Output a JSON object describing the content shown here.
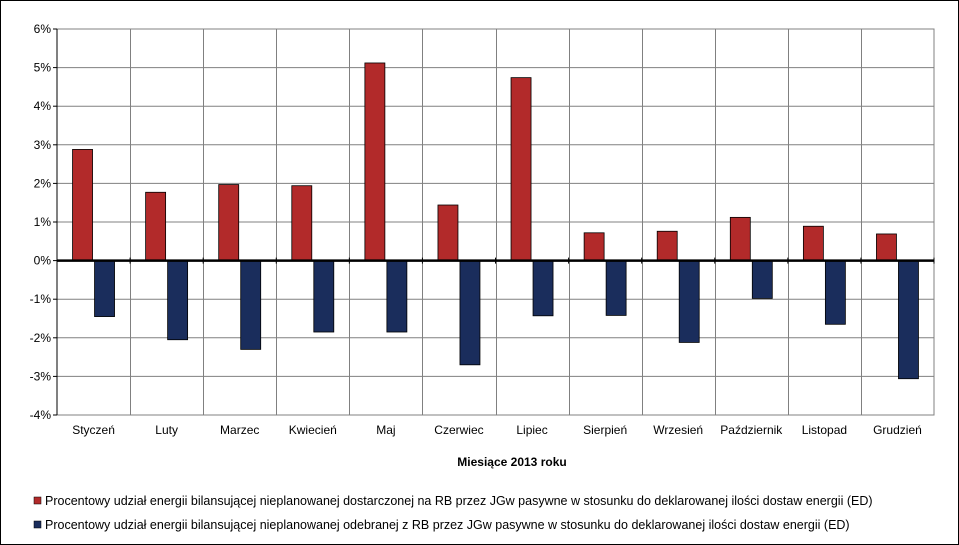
{
  "chart_data": {
    "type": "bar",
    "title": "",
    "xlabel": "Miesiące 2013  roku",
    "ylabel": "",
    "ylim": [
      -4,
      6
    ],
    "yticks": [
      6,
      5,
      4,
      3,
      2,
      1,
      0,
      -1,
      -2,
      -3,
      -4
    ],
    "ytick_labels": [
      "6%",
      "5%",
      "4%",
      "3%",
      "2%",
      "1%",
      "0%",
      "-1%",
      "-2%",
      "-3%",
      "-4%"
    ],
    "unit": "%",
    "grid": true,
    "legend_position": "bottom",
    "categories": [
      "Styczeń",
      "Luty",
      "Marzec",
      "Kwiecień",
      "Maj",
      "Czerwiec",
      "Lipiec",
      "Sierpień",
      "Wrzesień",
      "Październik",
      "Listopad",
      "Grudzień"
    ],
    "series": [
      {
        "name": "Procentowy udział energii bilansującej nieplanowanej dostarczonej na RB przez JGw pasywne w stosunku do deklarowanej ilości dostaw energii (ED)",
        "color": "#b22a2a",
        "values": [
          2.88,
          1.77,
          1.97,
          1.94,
          5.12,
          1.44,
          4.74,
          0.72,
          0.76,
          1.12,
          0.89,
          0.69
        ]
      },
      {
        "name": "Procentowy udział energii bilansującej nieplanowanej odebranej z RB przez JGw pasywne w stosunku do deklarowanej ilości dostaw energii (ED)",
        "color": "#1a2d5c",
        "values": [
          -1.45,
          -2.05,
          -2.3,
          -1.85,
          -1.85,
          -2.7,
          -1.43,
          -1.42,
          -2.12,
          -0.98,
          -1.65,
          -3.06
        ]
      }
    ]
  }
}
